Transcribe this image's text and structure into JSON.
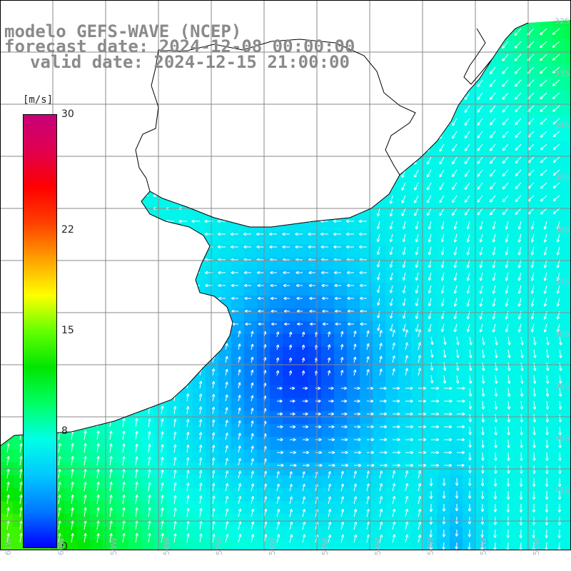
{
  "titles": {
    "line1": "modelo GEFS-WAVE (NCEP)",
    "line2": "forecast date: 2024-12-08 00:00:00",
    "line3": "valid date: 2024-12-15 21:00:00"
  },
  "colorbar": {
    "unit": "[m/s]",
    "min": 0,
    "max": 30,
    "ticks": [
      "30",
      "22",
      "15",
      "8",
      "0"
    ],
    "tick_values": [
      30,
      22,
      15,
      8,
      0
    ],
    "colors": [
      "#0000ff",
      "#0078ff",
      "#00c8ff",
      "#00ffe6",
      "#00ff64",
      "#00e600",
      "#64ff00",
      "#ffff00",
      "#ffa000",
      "#ff4000",
      "#ff0000",
      "#e00050",
      "#c80078"
    ]
  },
  "map": {
    "land_color": "#ffffff",
    "grid_color": "#888888",
    "coast_color": "#000000",
    "arrow_color": "#ffffff",
    "lat_labels": [
      "32S",
      "33S",
      "34S",
      "35S",
      "36S",
      "37S",
      "38S",
      "39S",
      "40S",
      "41S"
    ],
    "lon_labels": [
      "61W",
      "60W",
      "59W",
      "58W",
      "57W",
      "56W",
      "55W",
      "54W",
      "53W",
      "52W",
      "51W"
    ]
  }
}
